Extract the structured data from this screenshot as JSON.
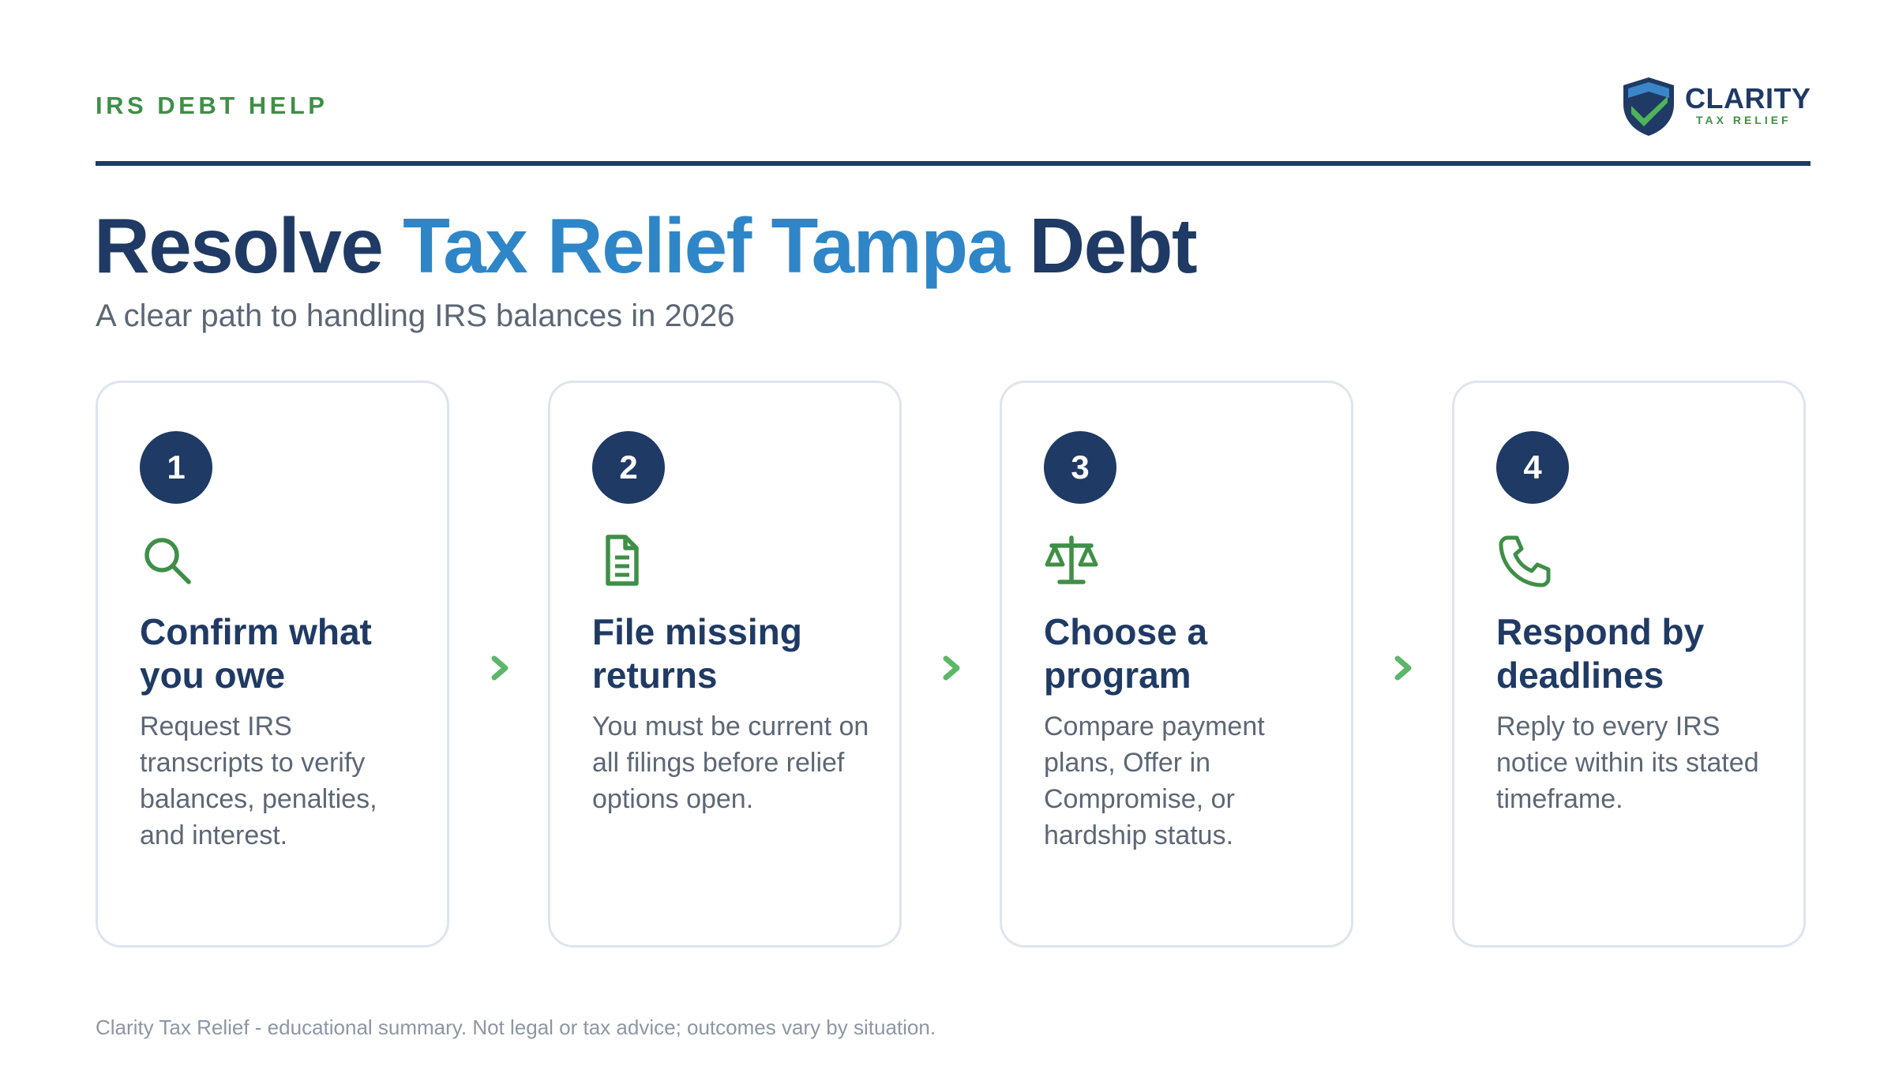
{
  "header": {
    "eyebrow": "IRS DEBT HELP",
    "logo_name": "CLARITY",
    "logo_sub": "TAX RELIEF"
  },
  "hero": {
    "title_start": "Resolve",
    "title_accent": "Tax Relief Tampa",
    "title_end": "Debt",
    "subtitle": "A clear path to handling IRS balances in 2026"
  },
  "steps": [
    {
      "number": "1",
      "icon": "search-icon",
      "title": "Confirm what you owe",
      "body": "Request IRS transcripts to verify balances, penalties, and interest."
    },
    {
      "number": "2",
      "icon": "document-icon",
      "title": "File missing returns",
      "body": "You must be current on all filings before relief options open."
    },
    {
      "number": "3",
      "icon": "scale-icon",
      "title": "Choose a program",
      "body": "Compare payment plans, Offer in Compromise, or hardship status."
    },
    {
      "number": "4",
      "icon": "phone-icon",
      "title": "Respond by deadlines",
      "body": "Reply to every IRS notice within its stated timeframe."
    }
  ],
  "footer": {
    "disclaimer": "Clarity Tax Relief - educational summary. Not legal or tax advice; outcomes vary by situation."
  },
  "colors": {
    "navy": "#1f3a64",
    "accent_blue": "#2e86c8",
    "green": "#3f8f47",
    "chevron_green": "#5cb768"
  }
}
